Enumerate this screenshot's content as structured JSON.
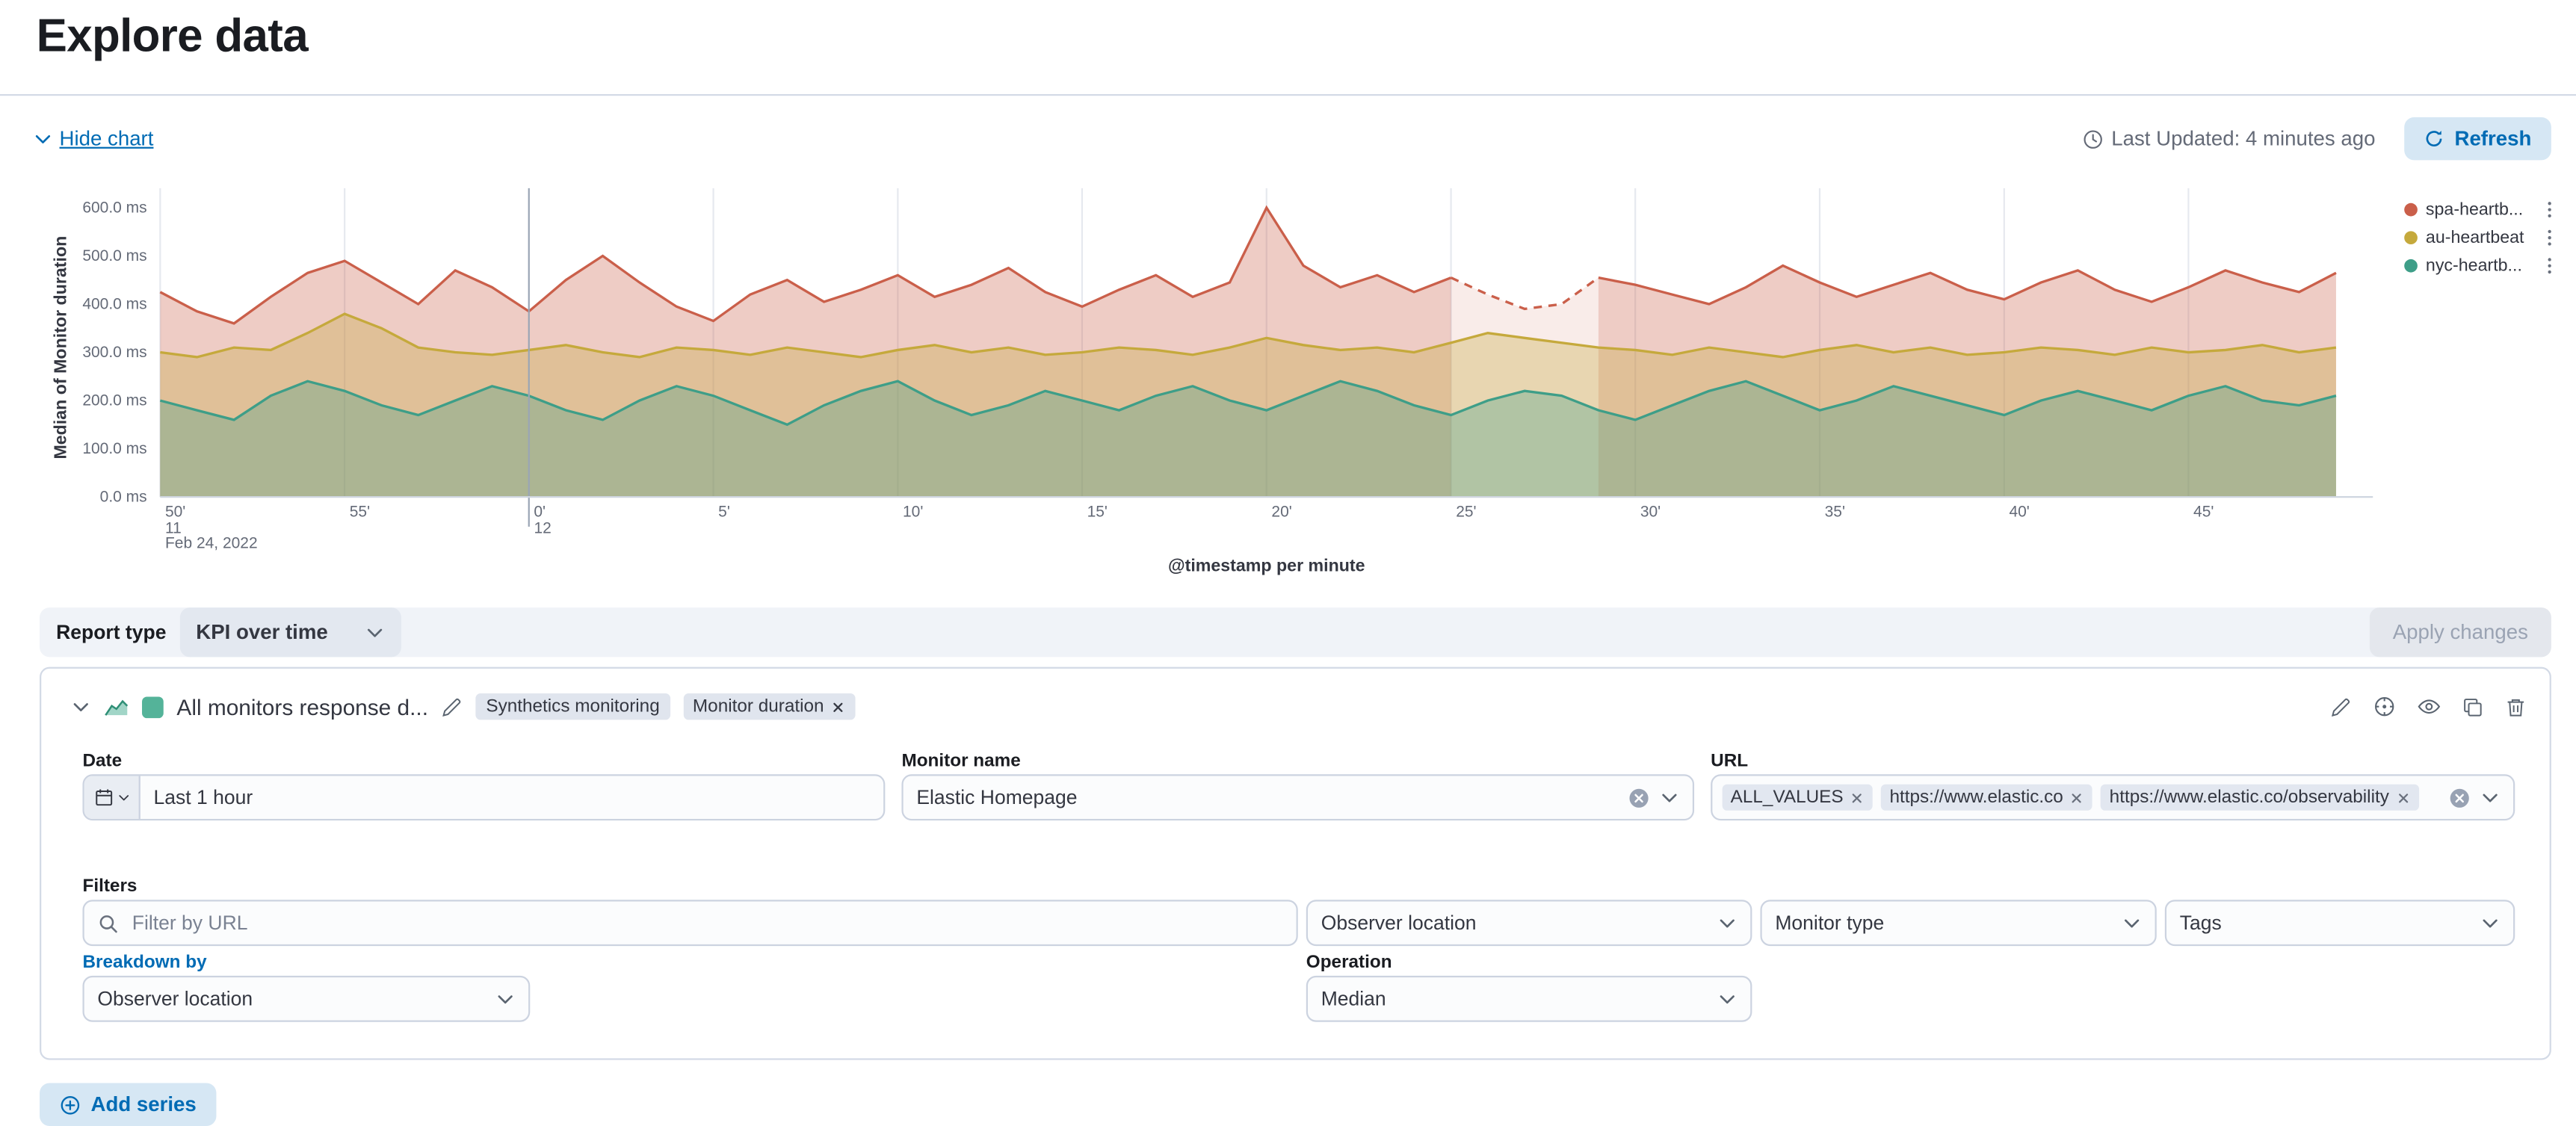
{
  "page": {
    "title": "Explore data"
  },
  "chart_header": {
    "hide_chart": "Hide chart",
    "last_updated": "Last Updated: 4 minutes ago",
    "refresh": "Refresh"
  },
  "chart_data": {
    "type": "area",
    "title": "",
    "xlabel": "@timestamp per minute",
    "ylabel": "Median of Monitor duration",
    "ylim": [
      0,
      620
    ],
    "y_tick_labels": [
      "0.0 ms",
      "100.0 ms",
      "200.0 ms",
      "300.0 ms",
      "400.0 ms",
      "500.0 ms",
      "600.0 ms"
    ],
    "x_tick_labels": [
      "50'",
      "55'",
      "0'",
      "5'",
      "10'",
      "15'",
      "20'",
      "25'",
      "30'",
      "35'",
      "40'",
      "45'"
    ],
    "hour_tick": "0'",
    "context": {
      "start_hour": "11",
      "start_date": "Feb 24, 2022",
      "next_hour": "12"
    },
    "grid": "vertical-only",
    "legend_position": "right",
    "series": [
      {
        "name": "spa-heartbeat",
        "color": "#CA5F4A",
        "gap": [
          35,
          39
        ],
        "values": [
          425,
          385,
          360,
          415,
          465,
          490,
          445,
          400,
          470,
          435,
          385,
          450,
          500,
          445,
          395,
          365,
          420,
          450,
          405,
          430,
          460,
          415,
          440,
          475,
          425,
          395,
          430,
          460,
          415,
          445,
          600,
          480,
          435,
          460,
          425,
          455,
          420,
          390,
          400,
          455,
          440,
          420,
          400,
          435,
          480,
          445,
          415,
          440,
          465,
          430,
          410,
          445,
          470,
          430,
          405,
          435,
          470,
          445,
          425,
          465
        ]
      },
      {
        "name": "au-heartbeat",
        "color": "#C5A93C",
        "values": [
          300,
          290,
          310,
          305,
          340,
          380,
          350,
          310,
          300,
          295,
          305,
          315,
          300,
          290,
          310,
          305,
          295,
          310,
          300,
          290,
          305,
          315,
          300,
          310,
          295,
          300,
          310,
          305,
          295,
          310,
          330,
          315,
          305,
          310,
          300,
          320,
          340,
          330,
          320,
          310,
          305,
          295,
          310,
          300,
          290,
          305,
          315,
          300,
          310,
          295,
          300,
          310,
          305,
          295,
          310,
          300,
          305,
          315,
          300,
          310
        ]
      },
      {
        "name": "nyc-heartbeat",
        "color": "#3E9E88",
        "values": [
          200,
          180,
          160,
          210,
          240,
          220,
          190,
          170,
          200,
          230,
          210,
          180,
          160,
          200,
          230,
          210,
          180,
          150,
          190,
          220,
          240,
          200,
          170,
          190,
          220,
          200,
          180,
          210,
          230,
          200,
          180,
          210,
          240,
          220,
          190,
          170,
          200,
          220,
          210,
          180,
          160,
          190,
          220,
          240,
          210,
          180,
          200,
          230,
          210,
          190,
          170,
          200,
          220,
          200,
          180,
          210,
          230,
          200,
          190,
          210
        ]
      }
    ]
  },
  "legend": {
    "items": [
      {
        "label": "spa-heartb..."
      },
      {
        "label": "au-heartbeat"
      },
      {
        "label": "nyc-heartb..."
      }
    ]
  },
  "report_bar": {
    "label": "Report type",
    "value": "KPI over time",
    "apply_label": "Apply changes"
  },
  "series_panel": {
    "title": "All monitors response d...",
    "badges": [
      "Synthetics monitoring",
      "Monitor duration"
    ],
    "date": {
      "label": "Date",
      "value": "Last 1 hour"
    },
    "monitor_name": {
      "label": "Monitor name",
      "value": "Elastic Homepage"
    },
    "url": {
      "label": "URL",
      "pills": [
        "ALL_VALUES",
        "https://www.elastic.co",
        "https://www.elastic.co/observability"
      ]
    },
    "filters": {
      "label": "Filters",
      "search_placeholder": "Filter by URL",
      "observer_location": "Observer location",
      "monitor_type": "Monitor type",
      "tags": "Tags"
    },
    "breakdown": {
      "label": "Breakdown by",
      "value": "Observer location"
    },
    "operation": {
      "label": "Operation",
      "value": "Median"
    }
  },
  "footer": {
    "add_series": "Add series"
  }
}
